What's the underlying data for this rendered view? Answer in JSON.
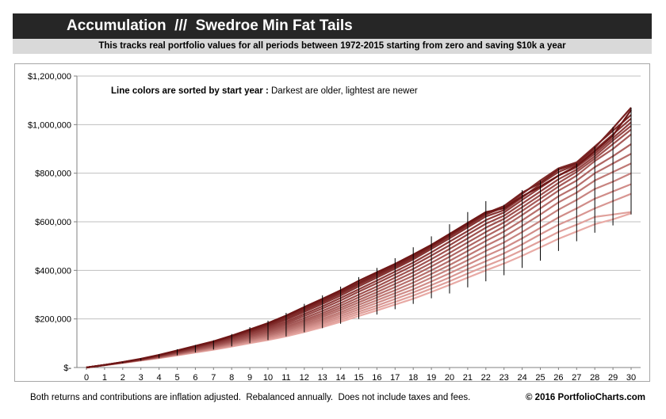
{
  "header": {
    "title": "Accumulation  ///  Swedroe Min Fat Tails",
    "subtitle": "This tracks real portfolio values for all periods between 1972-2015 starting from zero and saving $10k a year"
  },
  "footer": {
    "note": "Both returns and contributions are inflation adjusted.  Rebalanced annually.  Does not include taxes and fees.",
    "copyright": "© 2016 PortfolioCharts.com"
  },
  "chart_data": {
    "type": "line",
    "title": "Accumulation  ///  Swedroe Min Fat Tails",
    "xlabel": "",
    "ylabel": "",
    "x": [
      0,
      1,
      2,
      3,
      4,
      5,
      6,
      7,
      8,
      9,
      10,
      11,
      12,
      13,
      14,
      15,
      16,
      17,
      18,
      19,
      20,
      21,
      22,
      23,
      24,
      25,
      26,
      27,
      28,
      29,
      30
    ],
    "xlim": [
      0,
      30
    ],
    "ylim": [
      0,
      1200000
    ],
    "y_ticks": [
      0,
      200000,
      400000,
      600000,
      800000,
      1000000,
      1200000
    ],
    "y_tick_labels": [
      "$-",
      "$200,000",
      "$400,000",
      "$600,000",
      "$800,000",
      "$1,000,000",
      "$1,200,000"
    ],
    "x_tick_labels": [
      "0",
      "1",
      "2",
      "3",
      "4",
      "5",
      "6",
      "7",
      "8",
      "9",
      "10",
      "11",
      "12",
      "13",
      "14",
      "15",
      "16",
      "17",
      "18",
      "19",
      "20",
      "21",
      "22",
      "23",
      "24",
      "25",
      "26",
      "27",
      "28",
      "29",
      "30"
    ],
    "grid": true,
    "annotation": {
      "bold": "Line colors are sorted by start year :",
      "normal": " Darkest are older, lightest are newer"
    },
    "range_bars": {
      "low": [
        0,
        9000,
        18000,
        28000,
        38000,
        50000,
        62000,
        74000,
        87000,
        100000,
        113000,
        128000,
        145000,
        162000,
        180000,
        200000,
        218000,
        240000,
        262000,
        285000,
        305000,
        330000,
        355000,
        380000,
        410000,
        440000,
        480000,
        520000,
        555000,
        585000,
        630000
      ],
      "high": [
        0,
        11000,
        23000,
        38000,
        55000,
        75000,
        93000,
        112000,
        138000,
        166000,
        193000,
        225000,
        262000,
        297000,
        333000,
        372000,
        410000,
        450000,
        495000,
        540000,
        590000,
        640000,
        685000,
        670000,
        730000,
        770000,
        820000,
        840000,
        910000,
        990000,
        1070000
      ]
    },
    "series": [
      {
        "values": [
          0,
          10600,
          22600,
          36000,
          52000,
          70000,
          89000,
          108000,
          131000,
          157000,
          183000,
          214000,
          249000,
          283000,
          318000,
          357000,
          392000,
          427000,
          465000,
          505000,
          550000,
          595000,
          640000,
          655000,
          705000,
          745000,
          790000,
          830000,
          890000,
          955000,
          1060000
        ]
      },
      {
        "values": [
          0,
          10500,
          22200,
          35000,
          51000,
          69000,
          87000,
          106000,
          129000,
          153000,
          178000,
          209000,
          243000,
          276000,
          311000,
          349000,
          385000,
          420000,
          458000,
          500000,
          545000,
          590000,
          635000,
          665000,
          720000,
          760000,
          815000,
          840000,
          905000,
          985000,
          1070000
        ]
      },
      {
        "values": [
          0,
          10400,
          21800,
          34200,
          49500,
          67000,
          85000,
          104000,
          126000,
          149000,
          173000,
          202000,
          236000,
          269000,
          304000,
          342000,
          378000,
          414000,
          452000,
          496000,
          540000,
          585000,
          630000,
          660000,
          715000,
          770000,
          820000,
          845000,
          910000,
          975000,
          1040000
        ]
      },
      {
        "values": [
          0,
          10400,
          21600,
          34000,
          48500,
          65000,
          83000,
          101000,
          122000,
          145000,
          168000,
          197000,
          229000,
          262000,
          296000,
          334000,
          370000,
          407000,
          445000,
          488000,
          532000,
          577000,
          622000,
          648000,
          700000,
          755000,
          805000,
          835000,
          895000,
          960000,
          1025000
        ]
      },
      {
        "values": [
          0,
          10300,
          21200,
          33200,
          47000,
          63000,
          80000,
          98000,
          118000,
          140000,
          162000,
          189000,
          220000,
          252000,
          286000,
          322000,
          358000,
          395000,
          432000,
          474000,
          518000,
          562000,
          607000,
          638000,
          690000,
          740000,
          790000,
          825000,
          880000,
          945000,
          1010000
        ]
      },
      {
        "values": [
          0,
          10200,
          21000,
          32600,
          46000,
          61500,
          78000,
          95000,
          114000,
          135000,
          156000,
          182000,
          212000,
          243000,
          276000,
          312000,
          347000,
          383000,
          420000,
          461000,
          503000,
          548000,
          592000,
          625000,
          675000,
          725000,
          775000,
          815000,
          870000,
          935000,
          995000
        ]
      },
      {
        "values": [
          0,
          10200,
          20800,
          32000,
          45000,
          60000,
          76000,
          92000,
          110000,
          130000,
          150000,
          175000,
          203000,
          233000,
          265000,
          300000,
          334000,
          370000,
          406000,
          446000,
          488000,
          532000,
          576000,
          612000,
          660000,
          710000,
          760000,
          805000,
          860000,
          920000,
          980000
        ]
      },
      {
        "values": [
          0,
          10100,
          20600,
          31600,
          44000,
          58500,
          74000,
          89500,
          107000,
          126000,
          145000,
          168000,
          195000,
          224000,
          255000,
          289000,
          322000,
          357000,
          392000,
          431000,
          472000,
          515000,
          558000,
          597000,
          645000,
          695000,
          745000,
          790000,
          850000,
          900000,
          960000
        ]
      },
      {
        "values": [
          0,
          10100,
          20400,
          31200,
          43200,
          57000,
          72000,
          87000,
          104000,
          122000,
          140000,
          162000,
          188000,
          216000,
          246000,
          278000,
          310000,
          344000,
          378000,
          416000,
          456000,
          498000,
          540000,
          580000,
          628000,
          678000,
          728000,
          770000,
          825000,
          870000,
          920000
        ]
      },
      {
        "values": [
          0,
          10000,
          20200,
          30800,
          42500,
          56000,
          70500,
          85000,
          101000,
          118000,
          135000,
          156000,
          181000,
          208000,
          237000,
          268000,
          299000,
          331000,
          364000,
          400000,
          439000,
          480000,
          521000,
          560000,
          606000,
          655000,
          705000,
          745000,
          800000,
          840000,
          880000
        ]
      },
      {
        "values": [
          0,
          10000,
          20100,
          30500,
          41800,
          55000,
          69000,
          83000,
          98500,
          115000,
          131000,
          151000,
          175000,
          200000,
          228000,
          258000,
          288000,
          318000,
          350000,
          385000,
          422000,
          461000,
          501000,
          538000,
          583000,
          630000,
          680000,
          720000,
          770000,
          805000,
          840000
        ]
      },
      {
        "values": [
          0,
          9900,
          19900,
          30200,
          41200,
          54000,
          67500,
          81000,
          96000,
          112000,
          127000,
          146000,
          169000,
          193000,
          220000,
          248000,
          277000,
          306000,
          336000,
          370000,
          405000,
          442000,
          480000,
          515000,
          558000,
          603000,
          650000,
          690000,
          735000,
          765000,
          800000
        ]
      },
      {
        "values": [
          0,
          9900,
          19800,
          29900,
          40600,
          53000,
          66000,
          79000,
          93500,
          109000,
          123000,
          141000,
          163000,
          186000,
          212000,
          239000,
          266000,
          294000,
          322000,
          354000,
          388000,
          423000,
          459000,
          492000,
          532000,
          575000,
          618000,
          655000,
          695000,
          725000,
          755000
        ]
      },
      {
        "values": [
          0,
          9800,
          19600,
          29600,
          40000,
          52000,
          64500,
          77000,
          91000,
          106000,
          119000,
          136000,
          157000,
          179000,
          204000,
          230000,
          255000,
          282000,
          309000,
          339000,
          371000,
          405000,
          438000,
          470000,
          507000,
          548000,
          588000,
          620000,
          655000,
          685000,
          715000
        ]
      },
      {
        "values": [
          0,
          9800,
          19400,
          29300,
          39400,
          51000,
          63000,
          75000,
          88500,
          103000,
          116000,
          132000,
          151000,
          172000,
          196000,
          221000,
          245000,
          270000,
          296000,
          325000,
          355000,
          387000,
          418000,
          448000,
          483000,
          520000,
          558000,
          588000,
          620000,
          630000,
          640000
        ]
      },
      {
        "values": [
          0,
          9700,
          19200,
          29000,
          38800,
          50000,
          61500,
          73000,
          86000,
          100000,
          113000,
          128000,
          146000,
          166000,
          188000,
          212000,
          235000,
          259000,
          283000,
          311000,
          340000,
          370000,
          400000,
          428000,
          460000,
          495000,
          530000,
          560000,
          590000,
          610000,
          635000
        ]
      }
    ]
  }
}
